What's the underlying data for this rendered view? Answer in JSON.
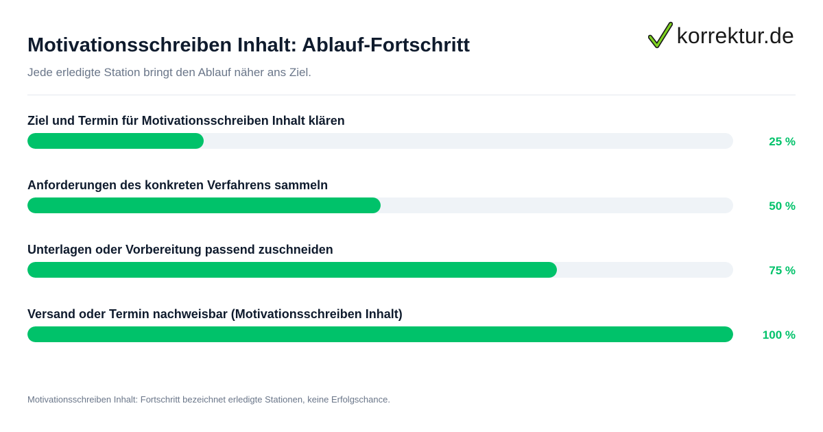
{
  "header": {
    "title": "Motivationsschreiben Inhalt: Ablauf-Fortschritt",
    "subtitle": "Jede erledigte Station bringt den Ablauf näher ans Ziel."
  },
  "brand": {
    "name": "korrektur.de",
    "icon": "checkmark-icon"
  },
  "colors": {
    "accent": "#00c26a",
    "track": "#eff3f7",
    "text": "#0f1b2d",
    "muted": "#6a7689"
  },
  "chart_data": {
    "type": "bar",
    "orientation": "horizontal",
    "title": "Motivationsschreiben Inhalt: Ablauf-Fortschritt",
    "subtitle": "Jede erledigte Station bringt den Ablauf näher ans Ziel.",
    "categories": [
      "Ziel und Termin für Motivationsschreiben Inhalt klären",
      "Anforderungen des konkreten Verfahrens sammeln",
      "Unterlagen oder Vorbereitung passend zuschneiden",
      "Versand oder Termin nachweisbar (Motivationsschreiben Inhalt)"
    ],
    "values": [
      25,
      50,
      75,
      100
    ],
    "value_labels": [
      "25 %",
      "50 %",
      "75 %",
      "100 %"
    ],
    "xlim": [
      0,
      100
    ],
    "unit": "%",
    "grid": false,
    "legend": "none"
  },
  "footnote": "Motivationsschreiben Inhalt: Fortschritt bezeichnet erledigte Stationen, keine Erfolgschance."
}
